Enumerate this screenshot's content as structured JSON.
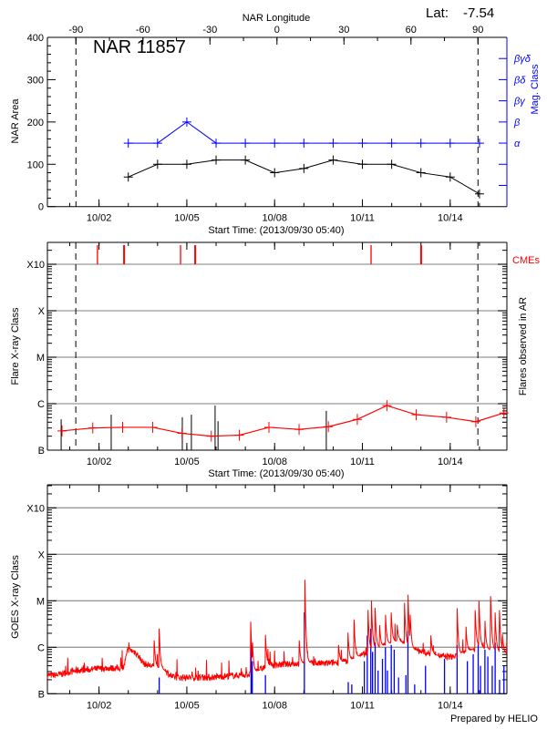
{
  "header": {
    "latitude_label": "Lat:",
    "latitude_value": "-7.54",
    "footer": "Prepared by HELIO"
  },
  "colors": {
    "area": "#000000",
    "mag_class": "#0000ff",
    "flare": "#ff0000",
    "cme": "#ff0000",
    "goes": "#ff0000",
    "goes_events": "#0000ff",
    "grid": "#999999"
  },
  "chart_data": [
    {
      "type": "line",
      "title": "NAR 11857",
      "xlabel": "Start Time: (2013/09/30 05:40)",
      "ylabel": "NAR Area",
      "ylabel_right": "Mag. Class",
      "top_axis_label": "NAR Longitude",
      "top_axis_ticks": [
        "-90",
        "-60",
        "-30",
        "0",
        "30",
        "60",
        "90"
      ],
      "top_axis_values": [
        -90,
        -60,
        -30,
        0,
        30,
        60,
        90
      ],
      "longitude_limb_lines": [
        -90,
        90
      ],
      "x_unit": "days since start",
      "xlim": [
        0,
        15.7
      ],
      "x_tick_labels": [
        "10/02",
        "10/05",
        "10/08",
        "10/11",
        "10/14"
      ],
      "x_tick_days": [
        1.764,
        4.764,
        7.764,
        10.764,
        13.764
      ],
      "ylim": [
        0,
        400
      ],
      "y_tick_labels": [
        "0",
        "100",
        "200",
        "300",
        "400"
      ],
      "right_axis_labels": [
        "α",
        "β",
        "βγ",
        "βδ",
        "βγδ"
      ],
      "right_axis_area_equiv": [
        150,
        200,
        250,
        300,
        350
      ],
      "x": [
        2.764,
        3.764,
        4.764,
        5.764,
        6.764,
        7.764,
        8.764,
        9.764,
        10.764,
        11.764,
        12.764,
        13.764,
        14.764
      ],
      "series": [
        {
          "name": "NAR Area",
          "values": [
            70,
            100,
            100,
            110,
            110,
            80,
            90,
            110,
            100,
            100,
            80,
            70,
            30
          ]
        },
        {
          "name": "Mag. Class",
          "values": [
            "α",
            "α",
            "β",
            "α",
            "α",
            "α",
            "α",
            "α",
            "α",
            "α",
            "α",
            "α",
            "α"
          ]
        }
      ]
    },
    {
      "type": "line",
      "xlabel": "Start Time: (2013/09/30 05:40)",
      "ylabel": "Flare X-ray Class",
      "ylabel_right": "Flares observed in AR",
      "cme_label": "CMEs",
      "y_scale": "log",
      "y_tick_labels": [
        "B",
        "C",
        "M",
        "X",
        "X10"
      ],
      "y_tick_log_flux": [
        -7,
        -6,
        -5,
        -4,
        -3
      ],
      "ylim_log_flux": [
        -7,
        -2.53
      ],
      "xlim": [
        0,
        15.7
      ],
      "x_tick_labels": [
        "10/02",
        "10/05",
        "10/08",
        "10/11",
        "10/14"
      ],
      "x_tick_days": [
        1.764,
        4.764,
        7.764,
        10.764,
        13.764
      ],
      "limb_lines_days": [
        0.97,
        14.71
      ],
      "flare_average": {
        "x": [
          0.5,
          1.55,
          2.57,
          3.6,
          4.6,
          5.6,
          6.56,
          7.57,
          8.6,
          9.6,
          10.59,
          11.6,
          12.6,
          13.64,
          14.64,
          15.6
        ],
        "values": [
          "B2.6",
          "B3.0",
          "B3.1",
          "B3.1",
          "B2.3",
          "B2.0",
          "B2.1",
          "B3.1",
          "B2.8",
          "B3.2",
          "B4.6",
          "B9.1",
          "B5.8",
          "B5.1",
          "B4.1",
          "B6.3"
        ]
      },
      "flares_observed": {
        "x": [
          0.47,
          2.18,
          4.61,
          4.92,
          5.73,
          5.83,
          9.53
        ],
        "values": [
          "B4.6",
          "B5.8",
          "B5.1",
          "B5.8",
          "B9.1",
          "B4.2",
          "B7.0"
        ]
      },
      "cmes_days": [
        1.71,
        2.62,
        4.55,
        5.05,
        11.06,
        12.77
      ]
    },
    {
      "type": "line",
      "ylabel": "GOES X-ray Class",
      "y_scale": "log",
      "y_tick_labels": [
        "B",
        "C",
        "M",
        "X",
        "X10"
      ],
      "y_tick_log_flux": [
        -7,
        -6,
        -5,
        -4,
        -3
      ],
      "ylim_log_flux": [
        -7,
        -2.5
      ],
      "xlim": [
        0,
        15.7
      ],
      "x_tick_labels": [
        "10/02",
        "10/05",
        "10/08",
        "10/11",
        "10/14"
      ],
      "x_tick_days": [
        1.764,
        4.764,
        7.764,
        10.764,
        13.764
      ],
      "baseline": {
        "x": [
          0,
          0.3,
          1,
          2,
          2.6,
          2.75,
          3.0,
          3.3,
          4.0,
          4.3,
          5.5,
          7.0,
          7.5,
          8.5,
          9.5,
          10.3,
          11.0,
          12.0,
          12.5,
          13.5,
          14.0,
          14.7,
          15.7
        ],
        "log_flux": [
          -6.6,
          -6.6,
          -6.5,
          -6.45,
          -6.45,
          -6.05,
          -6.1,
          -6.35,
          -6.5,
          -6.65,
          -6.65,
          -6.58,
          -6.4,
          -6.35,
          -6.35,
          -6.3,
          -6.1,
          -5.85,
          -6.05,
          -6.2,
          -6.2,
          -6.0,
          -6.15
        ]
      },
      "flares": {
        "x": [
          3.65,
          3.82,
          6.95,
          7.01,
          7.45,
          8.6,
          8.8,
          9.95,
          10.27,
          10.48,
          10.95,
          11.07,
          11.2,
          11.35,
          11.55,
          11.75,
          11.95,
          12.2,
          12.32,
          12.4,
          13.1,
          14.0,
          14.3,
          14.62,
          14.75,
          14.95,
          15.15,
          15.3,
          15.45,
          15.55
        ],
        "log_flux": [
          -5.85,
          -5.6,
          -5.45,
          -5.9,
          -5.7,
          -5.8,
          -4.55,
          -5.95,
          -5.65,
          -5.4,
          -5.05,
          -4.82,
          -5.15,
          -5.5,
          -5.2,
          -5.25,
          -5.5,
          -4.95,
          -4.75,
          -5.3,
          -5.7,
          -5.05,
          -5.5,
          -5.2,
          -5.0,
          -5.4,
          -4.9,
          -5.25,
          -5.2,
          -5.7
        ]
      },
      "events": {
        "x": [
          3.82,
          6.96,
          7.0,
          7.45,
          8.78,
          10.28,
          10.4,
          10.83,
          10.93,
          11.05,
          11.11,
          11.2,
          11.3,
          11.45,
          11.55,
          11.62,
          11.75,
          11.85,
          12.0,
          12.25,
          12.32,
          12.55,
          12.92,
          13.57,
          14.0,
          14.35,
          14.55,
          14.72,
          14.8,
          14.95,
          15.05,
          15.2,
          15.3,
          15.45,
          15.6
        ],
        "log_flux": [
          -6.65,
          -5.8,
          -6.3,
          -6.6,
          -5.25,
          -6.75,
          -6.8,
          -6.3,
          -5.75,
          -5.6,
          -6.1,
          -5.9,
          -6.5,
          -6.25,
          -6.0,
          -6.5,
          -5.95,
          -6.05,
          -6.65,
          -6.6,
          -5.65,
          -6.8,
          -6.4,
          -6.25,
          -5.95,
          -6.3,
          -6.15,
          -5.95,
          -6.4,
          -6.05,
          -6.2,
          -6.4,
          -5.9,
          -6.7,
          -6.4
        ]
      }
    }
  ]
}
